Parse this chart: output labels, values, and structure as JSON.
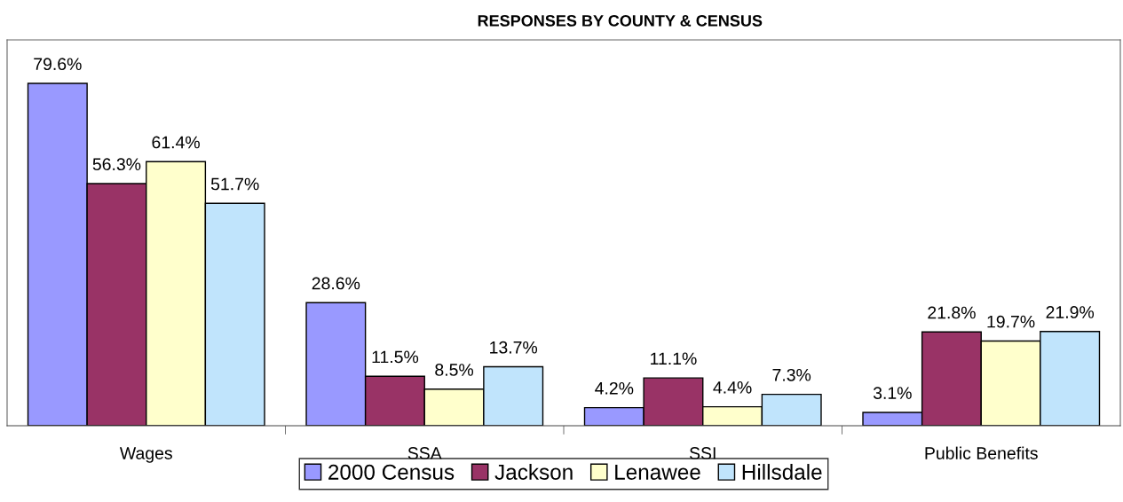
{
  "chart_data": {
    "type": "bar",
    "title": "RESPONSES BY COUNTY & CENSUS",
    "categories": [
      "Wages",
      "SSA",
      "SSI",
      "Public Benefits"
    ],
    "series": [
      {
        "name": "2000 Census",
        "color": "#9999ff",
        "values": [
          79.6,
          28.6,
          4.2,
          3.1
        ],
        "value_labels": [
          "79.6%",
          "28.6%",
          "4.2%",
          "3.1%"
        ]
      },
      {
        "name": "Jackson",
        "color": "#993366",
        "values": [
          56.3,
          11.5,
          11.1,
          21.8
        ],
        "value_labels": [
          "56.3%",
          "11.5%",
          "11.1%",
          "21.8%"
        ]
      },
      {
        "name": "Lenawee",
        "color": "#ffffcc",
        "values": [
          61.4,
          8.5,
          4.4,
          19.7
        ],
        "value_labels": [
          "61.4%",
          "8.5%",
          "4.4%",
          "19.7%"
        ]
      },
      {
        "name": "Hillsdale",
        "color": "#c0e4fc",
        "values": [
          51.7,
          13.7,
          7.3,
          21.9
        ],
        "value_labels": [
          "51.7%",
          "13.7%",
          "7.3%",
          "21.9%"
        ]
      }
    ],
    "legend": "bottom",
    "tick_labels": "x"
  }
}
